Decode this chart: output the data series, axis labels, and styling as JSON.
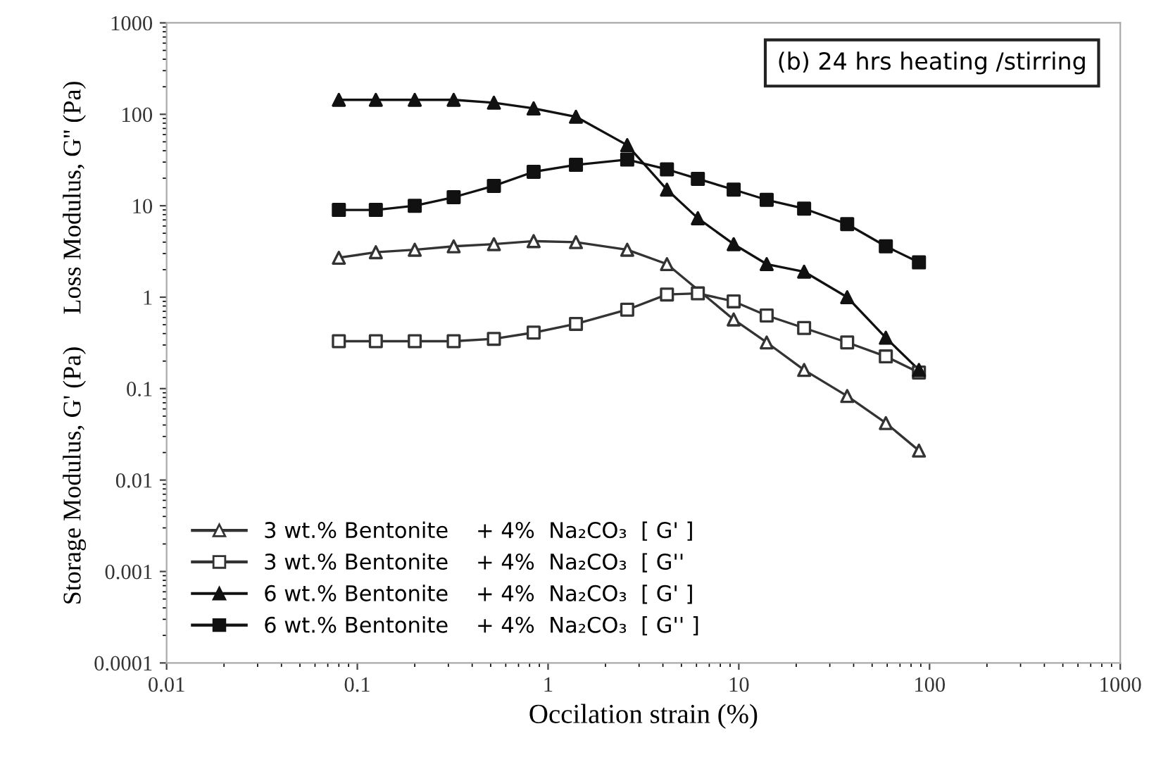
{
  "chart_data": {
    "type": "line",
    "xlabel": "Occilation strain (%)",
    "ylabel": "Storage Modulus, G' (Pa)     Loss Modulus, G'' (Pa)",
    "annotations": [
      "(b) 24 hrs heating /stirring"
    ],
    "x": [
      0.08,
      0.125,
      0.2,
      0.32,
      0.52,
      0.84,
      1.4,
      2.6,
      4.2,
      6.1,
      9.4,
      14,
      22,
      37,
      59,
      88
    ],
    "series": [
      {
        "name": "3 wt.% Bentonite    + 4%  Na₂CO₃  [ G' ]",
        "color": "#333333",
        "marker": "triangle",
        "colors": [
          "#ffffff",
          "#ffffff",
          "#ffffff",
          "#ffffff",
          "#ffffff",
          "#ffffff",
          "#ffffff",
          "#ffffff",
          "#ffffff",
          "#ffffff",
          "#ffffff",
          "#ffffff",
          "#ffffff",
          "#ffffff",
          "#ffffff",
          "#ffffff"
        ],
        "values": [
          2.7,
          3.1,
          3.3,
          3.6,
          3.8,
          4.1,
          4.0,
          3.3,
          2.3,
          null,
          0.57,
          0.32,
          0.16,
          0.083,
          0.042,
          0.021
        ]
      },
      {
        "name": "3 wt.% Bentonite    + 4%  Na₂CO₃  [ G''",
        "color": "#333333",
        "marker": "square",
        "colors": [
          "#ffffff",
          "#ffffff",
          "#ffffff",
          "#ffffff",
          "#ffffff",
          "#ffffff",
          "#ffffff",
          "#ffffff",
          "#ffffff",
          "#ffffff",
          "#ffffff",
          "#ffffff",
          "#ffffff",
          "#ffffff",
          "#ffffff",
          "#ffffff"
        ],
        "values": [
          0.33,
          0.33,
          0.33,
          0.33,
          0.35,
          0.41,
          0.51,
          0.73,
          1.07,
          1.1,
          0.9,
          0.63,
          0.46,
          0.32,
          0.225,
          0.15
        ]
      },
      {
        "name": "6 wt.% Bentonite    + 4%  Na₂CO₃  [ G' ]",
        "color": "#111111",
        "marker": "triangle",
        "values": [
          144,
          144,
          144,
          144,
          134,
          116,
          94,
          46,
          15,
          7.3,
          3.8,
          2.3,
          1.9,
          1.0,
          0.36,
          0.16
        ]
      },
      {
        "name": "6 wt.% Bentonite    + 4%  Na₂CO₃  [ G'' ]",
        "color": "#111111",
        "marker": "square",
        "values": [
          9,
          9,
          10,
          12.4,
          16.5,
          23.5,
          28,
          32,
          25,
          19.7,
          15,
          11.6,
          9.3,
          6.3,
          3.6,
          2.4
        ]
      }
    ],
    "log": "xy",
    "xlim": [
      0.01,
      1000
    ],
    "xticks": [
      0.01,
      0.1,
      1,
      10,
      100,
      1000
    ],
    "ylim": [
      0.0001,
      1000
    ],
    "yticks": [
      0.0001,
      0.001,
      0.01,
      0.1,
      1,
      10,
      100,
      1000
    ],
    "grid": false,
    "legend": "bottom left",
    "line_style": "solid"
  }
}
